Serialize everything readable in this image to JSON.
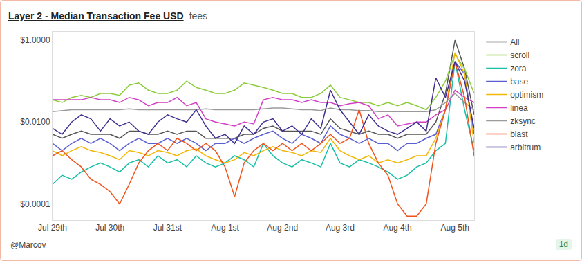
{
  "chart_data": {
    "type": "line",
    "title": "Layer 2 - Median Transaction Fee USD",
    "subtitle": "fees",
    "author": "@Marcov",
    "refresh": "1d",
    "log": "y",
    "grid": false,
    "legend": "right",
    "categories": [
      "Jul 29th",
      null,
      null,
      null,
      null,
      null,
      "Jul 30th",
      null,
      null,
      null,
      null,
      null,
      "Jul 31st",
      null,
      null,
      null,
      null,
      null,
      "Aug 1st",
      null,
      null,
      null,
      null,
      null,
      "Aug 2nd",
      null,
      null,
      null,
      null,
      null,
      "Aug 3rd",
      null,
      null,
      null,
      null,
      null,
      "Aug 4th",
      null,
      null,
      null,
      null,
      null,
      "Aug 5th",
      null,
      null
    ],
    "ylim": [
      4e-05,
      1.6
    ],
    "yticks": [
      {
        "value": 0.0001,
        "label": "$0.0001"
      },
      {
        "value": 0.01,
        "label": "$0.0100"
      },
      {
        "value": 1,
        "label": "$1.0000"
      }
    ],
    "series": [
      {
        "name": "All",
        "color": "#555555",
        "values": [
          0.005,
          0.004,
          0.005,
          0.006,
          0.005,
          0.005,
          0.005,
          0.004,
          0.006,
          0.006,
          0.005,
          0.005,
          0.006,
          0.005,
          0.006,
          0.006,
          0.004,
          0.004,
          0.004,
          0.004,
          0.005,
          0.005,
          0.007,
          0.008,
          0.006,
          0.006,
          0.006,
          0.006,
          0.005,
          0.012,
          0.007,
          0.006,
          0.005,
          0.006,
          0.005,
          0.005,
          0.004,
          0.005,
          0.005,
          0.005,
          0.01,
          0.05,
          1.0,
          0.2,
          0.015
        ]
      },
      {
        "name": "scroll",
        "color": "#8ccc3c",
        "values": [
          0.035,
          0.03,
          0.04,
          0.045,
          0.04,
          0.05,
          0.05,
          0.045,
          0.08,
          0.09,
          0.06,
          0.05,
          0.05,
          0.06,
          0.1,
          0.07,
          0.06,
          0.05,
          0.05,
          0.06,
          0.09,
          0.08,
          0.07,
          0.06,
          0.05,
          0.05,
          0.04,
          0.04,
          0.05,
          0.08,
          0.04,
          0.035,
          0.03,
          0.03,
          0.025,
          0.03,
          0.025,
          0.03,
          0.025,
          0.02,
          0.04,
          0.1,
          0.45,
          0.2,
          0.05
        ]
      },
      {
        "name": "zora",
        "color": "#17bfa5",
        "values": [
          0.0003,
          0.0005,
          0.0004,
          0.0006,
          0.0008,
          0.001,
          0.0008,
          0.0006,
          0.001,
          0.0012,
          0.0008,
          0.0015,
          0.001,
          0.0012,
          0.0008,
          0.0015,
          0.001,
          0.0008,
          0.001,
          0.0015,
          0.0012,
          0.0008,
          0.003,
          0.0015,
          0.001,
          0.0008,
          0.0012,
          0.001,
          0.0008,
          0.003,
          0.001,
          0.0008,
          0.0012,
          0.001,
          0.0008,
          0.0006,
          0.0004,
          0.0005,
          0.0008,
          0.001,
          0.002,
          0.003,
          0.3,
          0.02,
          0.002
        ]
      },
      {
        "name": "base",
        "color": "#5b5fd0",
        "values": [
          0.003,
          0.002,
          0.003,
          0.004,
          0.003,
          0.004,
          0.003,
          0.002,
          0.003,
          0.004,
          0.003,
          0.003,
          0.004,
          0.003,
          0.004,
          0.003,
          0.002,
          0.003,
          0.003,
          0.004,
          0.003,
          0.004,
          0.005,
          0.006,
          0.004,
          0.003,
          0.005,
          0.004,
          0.003,
          0.008,
          0.005,
          0.004,
          0.003,
          0.004,
          0.003,
          0.003,
          0.002,
          0.003,
          0.003,
          0.004,
          0.005,
          0.02,
          0.3,
          0.15,
          0.005
        ]
      },
      {
        "name": "optimism",
        "color": "#f2b705",
        "values": [
          0.002,
          0.0015,
          0.002,
          0.0025,
          0.002,
          0.0018,
          0.0015,
          0.0012,
          0.002,
          0.0018,
          0.0015,
          0.002,
          0.0018,
          0.0015,
          0.002,
          0.0022,
          0.0015,
          0.0012,
          0.001,
          0.0012,
          0.0018,
          0.0015,
          0.002,
          0.0025,
          0.002,
          0.0018,
          0.0015,
          0.002,
          0.0018,
          0.004,
          0.002,
          0.0015,
          0.0012,
          0.0015,
          0.001,
          0.0012,
          0.001,
          0.0012,
          0.0015,
          0.0015,
          0.004,
          0.02,
          0.5,
          0.15,
          0.003
        ]
      },
      {
        "name": "linea",
        "color": "#d23fc4",
        "values": [
          0.035,
          0.035,
          0.035,
          0.035,
          0.04,
          0.035,
          0.035,
          0.03,
          0.04,
          0.035,
          0.025,
          0.03,
          0.03,
          0.04,
          0.025,
          0.03,
          0.012,
          0.01,
          0.009,
          0.008,
          0.01,
          0.009,
          0.035,
          0.04,
          0.035,
          0.035,
          0.03,
          0.035,
          0.03,
          0.03,
          0.025,
          0.028,
          0.03,
          0.025,
          0.012,
          0.015,
          0.008,
          0.009,
          0.01,
          0.01,
          0.015,
          0.02,
          0.06,
          0.04,
          0.03
        ]
      },
      {
        "name": "zksync",
        "color": "#9a9a9a",
        "values": [
          0.018,
          0.019,
          0.02,
          0.02,
          0.02,
          0.02,
          0.02,
          0.02,
          0.021,
          0.02,
          0.02,
          0.02,
          0.02,
          0.02,
          0.02,
          0.02,
          0.021,
          0.02,
          0.02,
          0.02,
          0.02,
          0.02,
          0.021,
          0.022,
          0.022,
          0.021,
          0.02,
          0.02,
          0.019,
          0.022,
          0.02,
          0.02,
          0.019,
          0.019,
          0.018,
          0.018,
          0.018,
          0.018,
          0.018,
          0.018,
          0.02,
          0.03,
          0.05,
          0.03,
          0.02
        ]
      },
      {
        "name": "blast",
        "color": "#f0531c",
        "values": [
          0.0015,
          0.002,
          0.0012,
          0.0008,
          0.0004,
          0.0003,
          0.0002,
          0.0001,
          0.0003,
          0.001,
          0.002,
          0.003,
          0.002,
          0.004,
          0.003,
          0.002,
          0.003,
          0.002,
          0.0008,
          0.00015,
          0.001,
          0.002,
          0.003,
          0.002,
          0.003,
          0.002,
          0.003,
          0.002,
          0.003,
          0.005,
          0.003,
          0.004,
          0.02,
          0.003,
          0.001,
          0.0005,
          0.0001,
          5e-05,
          5e-05,
          0.0001,
          0.003,
          0.02,
          0.3,
          0.04,
          0.0015
        ]
      },
      {
        "name": "arbitrum",
        "color": "#3f2f8f",
        "values": [
          0.007,
          0.005,
          0.01,
          0.015,
          0.012,
          0.006,
          0.012,
          0.008,
          0.01,
          0.006,
          0.005,
          0.01,
          0.015,
          0.012,
          0.01,
          0.02,
          0.008,
          0.004,
          0.005,
          0.003,
          0.008,
          0.005,
          0.01,
          0.012,
          0.006,
          0.008,
          0.005,
          0.012,
          0.007,
          0.06,
          0.02,
          0.01,
          0.005,
          0.015,
          0.008,
          0.006,
          0.005,
          0.007,
          0.01,
          0.006,
          0.12,
          0.04,
          0.3,
          0.1,
          0.007
        ]
      }
    ]
  }
}
